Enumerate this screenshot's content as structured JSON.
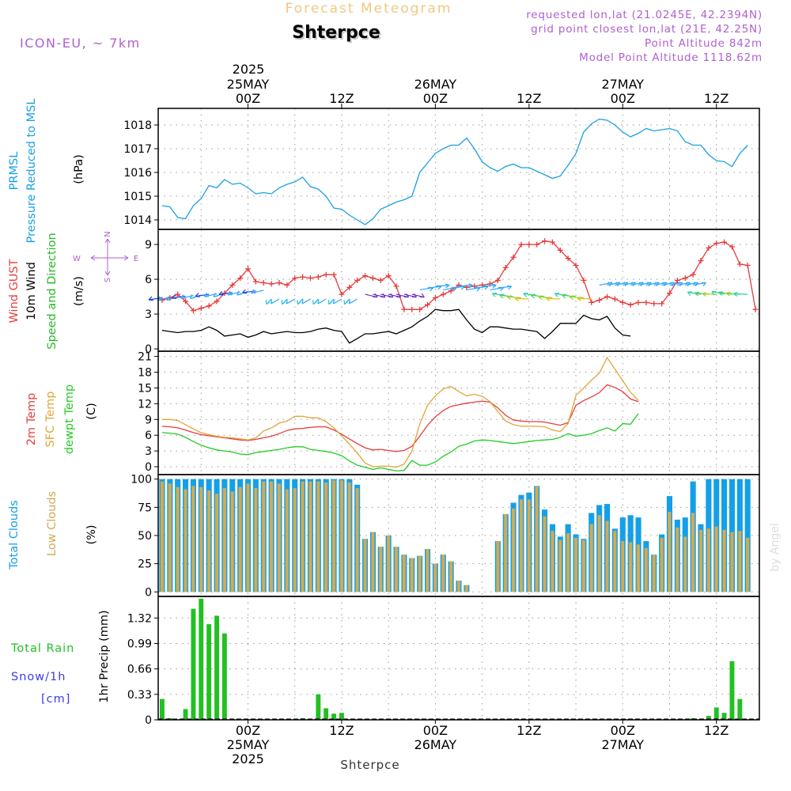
{
  "header": {
    "supertitle": "Forecast Meteogram",
    "location": "Shterpce",
    "model": "ICON-EU, ~ 7km",
    "requested": "requested lon,lat (21.0245E, 42.2394N)",
    "grid_point": "grid point closest lon,lat (21E, 42.25N)",
    "point_alt": "Point Altitude 842m",
    "model_alt": "Model Point Altitude 1118.62m",
    "credit": "by Angel",
    "footer": "Shterpce"
  },
  "colors": {
    "pressure": "#1aa0e6",
    "gust": "#e63c3c",
    "wind10": "#000000",
    "dir": "#22b822",
    "t2m": "#e63c3c",
    "sfc": "#e2a43a",
    "dew": "#22cc22",
    "total_clouds": "#14a0e8",
    "low_clouds": "#d4aa50",
    "rain": "#22c022",
    "snow": "#3c3ce6",
    "compass": "#b060d0",
    "meta": "#b060d0",
    "supertitle": "#f0c880",
    "grid": "#999999"
  },
  "time_axis": {
    "top_year": "2025",
    "top_labels": [
      {
        "hour": 0,
        "lines": [
          "25MAY",
          "00Z"
        ]
      },
      {
        "hour": 12,
        "lines": [
          "12Z"
        ]
      },
      {
        "hour": 24,
        "lines": [
          "26MAY",
          "00Z"
        ]
      },
      {
        "hour": 36,
        "lines": [
          "12Z"
        ]
      },
      {
        "hour": 48,
        "lines": [
          "27MAY",
          "00Z"
        ]
      },
      {
        "hour": 60,
        "lines": [
          "12Z"
        ]
      }
    ],
    "bottom_labels": [
      {
        "hour": 0,
        "lines": [
          "00Z",
          "25MAY",
          "2025"
        ]
      },
      {
        "hour": 12,
        "lines": [
          "12Z"
        ]
      },
      {
        "hour": 24,
        "lines": [
          "00Z",
          "26MAY"
        ]
      },
      {
        "hour": 36,
        "lines": [
          "12Z"
        ]
      },
      {
        "hour": 48,
        "lines": [
          "00Z",
          "27MAY"
        ]
      },
      {
        "hour": 60,
        "lines": [
          "12Z"
        ]
      }
    ],
    "hour_range": [
      -11.5,
      65.5
    ]
  },
  "chart_data": [
    {
      "type": "line",
      "id": "pressure",
      "title": "PRMSL Pressure Reduced to MSL",
      "label_lines": [
        "PRMSL",
        "Pressure Reduced to MSL"
      ],
      "ylabel": "(hPa)",
      "ylim": [
        1013.6,
        1018.7
      ],
      "yticks": [
        1014,
        1015,
        1016,
        1017,
        1018
      ],
      "x_start_hour": -11,
      "series": [
        {
          "name": "PRMSL",
          "color": "#1aa0e6",
          "values": [
            1014.6,
            1014.55,
            1014.1,
            1014.05,
            1014.6,
            1014.9,
            1015.45,
            1015.35,
            1015.7,
            1015.5,
            1015.55,
            1015.35,
            1015.1,
            1015.15,
            1015.1,
            1015.35,
            1015.5,
            1015.6,
            1015.8,
            1015.4,
            1015.3,
            1015.0,
            1014.5,
            1014.45,
            1014.2,
            1014.0,
            1013.8,
            1014.05,
            1014.45,
            1014.6,
            1014.75,
            1014.85,
            1015.0,
            1016.0,
            1016.4,
            1016.8,
            1017.0,
            1017.15,
            1017.15,
            1017.45,
            1017.0,
            1016.45,
            1016.2,
            1016.05,
            1016.25,
            1016.35,
            1016.2,
            1016.2,
            1016.05,
            1015.9,
            1015.75,
            1015.85,
            1016.3,
            1016.8,
            1017.7,
            1018.05,
            1018.25,
            1018.2,
            1018.0,
            1017.7,
            1017.5,
            1017.65,
            1017.85,
            1017.75,
            1017.8,
            1017.85,
            1017.75,
            1017.3,
            1017.15,
            1017.15,
            1016.75,
            1016.5,
            1016.45,
            1016.25,
            1016.8,
            1017.15
          ]
        }
      ]
    },
    {
      "type": "line",
      "id": "wind",
      "title": "Wind GUST / 10m Wind Speed and Direction",
      "label_gust": "Wind GUST",
      "label_wind": "10m Wind",
      "label_dir": "Speed and Direction",
      "ylabel": "(m/s)",
      "compass": {
        "n": "N",
        "s": "S",
        "w": "W",
        "e": "E"
      },
      "ylim": [
        -0.2,
        10.3
      ],
      "yticks": [
        0,
        3,
        6,
        9
      ],
      "x_start_hour": -11,
      "series": [
        {
          "name": "Wind GUST",
          "color": "#e63c3c",
          "markers": "+",
          "values": [
            4.2,
            4.4,
            4.7,
            4.1,
            3.3,
            3.5,
            3.7,
            4.1,
            4.8,
            5.5,
            6.1,
            6.9,
            5.8,
            5.7,
            5.6,
            5.7,
            5.5,
            6.1,
            6.2,
            6.1,
            6.2,
            6.4,
            6.4,
            4.7,
            5.3,
            5.9,
            6.3,
            6.1,
            5.9,
            6.3,
            5.4,
            3.4,
            3.4,
            3.4,
            3.8,
            4.4,
            4.7,
            5.0,
            5.5,
            5.3,
            5.4,
            5.5,
            5.6,
            5.9,
            7.0,
            7.9,
            9.0,
            9.0,
            9.0,
            9.3,
            9.2,
            8.5,
            7.8,
            7.2,
            5.9,
            4.0,
            4.2,
            4.5,
            4.3,
            4.0,
            3.8,
            4.0,
            4.0,
            3.9,
            3.9,
            4.8,
            5.9,
            6.1,
            6.4,
            7.6,
            8.7,
            9.1,
            9.2,
            8.8,
            7.3,
            7.2,
            3.4
          ]
        },
        {
          "name": "10m Wind",
          "color": "#000000",
          "values": [
            1.6,
            1.5,
            1.4,
            1.5,
            1.5,
            1.6,
            1.9,
            1.6,
            1.1,
            1.2,
            1.3,
            1.0,
            1.2,
            1.5,
            1.3,
            1.4,
            1.5,
            1.4,
            1.4,
            1.5,
            1.7,
            1.8,
            1.6,
            1.5,
            0.5,
            0.9,
            1.3,
            1.3,
            1.4,
            1.5,
            1.3,
            1.6,
            1.9,
            2.4,
            2.8,
            3.4,
            3.3,
            3.3,
            3.4,
            2.5,
            1.7,
            1.4,
            1.9,
            1.9,
            1.8,
            1.7,
            1.7,
            1.6,
            1.5,
            0.9,
            1.5,
            2.2,
            2.2,
            2.2,
            2.9,
            2.6,
            2.5,
            2.8,
            1.8,
            1.2,
            1.1
          ]
        }
      ]
    },
    {
      "type": "line",
      "id": "temperature",
      "title": "2m Temp / SFC Temp / dewpt Temp",
      "label_lines": [
        "2m Temp",
        "SFC Temp",
        "dewpt Temp"
      ],
      "ylabel": "(C)",
      "ylim": [
        -1.5,
        22.0
      ],
      "yticks": [
        0,
        3,
        6,
        9,
        12,
        15,
        18,
        21
      ],
      "x_start_hour": -11,
      "series": [
        {
          "name": "2m Temp",
          "color": "#e63c3c",
          "values": [
            7.7,
            7.6,
            7.4,
            7.0,
            6.5,
            6.1,
            5.9,
            5.7,
            5.5,
            5.3,
            5.1,
            5.0,
            5.2,
            5.5,
            5.8,
            6.3,
            6.9,
            7.2,
            7.3,
            7.5,
            7.6,
            7.6,
            7.0,
            6.2,
            5.3,
            4.4,
            3.6,
            3.2,
            3.3,
            3.1,
            2.9,
            3.1,
            3.9,
            5.8,
            7.9,
            9.5,
            10.7,
            11.5,
            11.8,
            12.1,
            12.3,
            12.5,
            12.3,
            11.2,
            9.8,
            8.9,
            8.7,
            8.6,
            8.6,
            8.5,
            8.2,
            7.9,
            8.4,
            11.7,
            12.6,
            13.3,
            14.1,
            15.6,
            15.1,
            14.3,
            12.9,
            12.4
          ]
        },
        {
          "name": "SFC Temp",
          "color": "#e2a43a",
          "values": [
            9.0,
            9.0,
            8.8,
            8.0,
            7.2,
            6.5,
            6.1,
            5.8,
            5.6,
            5.5,
            5.3,
            5.1,
            5.5,
            6.8,
            7.4,
            8.3,
            8.7,
            9.6,
            9.6,
            9.3,
            9.3,
            8.6,
            7.4,
            5.9,
            4.3,
            2.6,
            0.7,
            0.0,
            0.1,
            0.1,
            -0.1,
            0.5,
            3.0,
            8.1,
            11.7,
            13.5,
            14.8,
            15.3,
            14.3,
            13.5,
            13.8,
            13.4,
            12.4,
            10.5,
            8.7,
            8.0,
            7.7,
            7.7,
            7.7,
            7.6,
            7.0,
            6.7,
            8.2,
            13.6,
            15.0,
            16.5,
            17.8,
            20.8,
            18.6,
            16.4,
            14.2,
            12.6
          ]
        },
        {
          "name": "dewpt Temp",
          "color": "#22cc22",
          "values": [
            6.5,
            6.4,
            6.2,
            5.6,
            4.8,
            4.1,
            3.6,
            3.2,
            3.0,
            2.8,
            2.4,
            2.3,
            2.7,
            2.9,
            3.1,
            3.3,
            3.6,
            3.8,
            3.8,
            3.3,
            3.1,
            2.9,
            2.6,
            2.1,
            1.1,
            0.3,
            -0.1,
            -0.5,
            -0.2,
            -0.5,
            -0.8,
            -0.7,
            1.2,
            0.3,
            0.3,
            0.9,
            2.0,
            2.8,
            3.9,
            4.3,
            4.9,
            5.1,
            5.0,
            4.8,
            4.6,
            4.4,
            4.6,
            4.8,
            5.0,
            5.1,
            5.2,
            5.6,
            6.3,
            5.8,
            6.0,
            6.3,
            6.9,
            7.4,
            6.8,
            8.2,
            8.1,
            10.1
          ]
        }
      ]
    },
    {
      "type": "bar",
      "id": "clouds",
      "title": "Total Clouds / Low Clouds",
      "label_total": "Total Clouds",
      "label_low": "Low Clouds",
      "ylabel": "(%)",
      "ylim": [
        -4,
        104
      ],
      "yticks": [
        0,
        25,
        50,
        75,
        100
      ],
      "x_start_hour": -11,
      "series": [
        {
          "name": "Total Clouds",
          "color": "#14a0e8",
          "values": [
            100,
            100,
            100,
            100,
            100,
            100,
            100,
            100,
            100,
            100,
            100,
            100,
            100,
            100,
            100,
            100,
            100,
            100,
            100,
            100,
            100,
            100,
            100,
            100,
            100,
            95,
            47,
            53,
            40,
            50,
            40,
            33,
            30,
            32,
            38,
            25,
            33,
            27,
            10,
            6,
            0,
            0,
            0,
            45,
            69,
            79,
            86,
            88,
            94,
            73,
            60,
            49,
            60,
            51,
            47,
            70,
            77,
            78,
            56,
            66,
            68,
            66,
            45,
            33,
            51,
            85,
            64,
            66,
            98,
            60,
            100,
            100,
            100,
            100,
            100,
            100
          ]
        },
        {
          "name": "Low Clouds",
          "color": "#d4aa50",
          "values": [
            98,
            96,
            93,
            91,
            94,
            93,
            90,
            87,
            92,
            89,
            93,
            96,
            92,
            98,
            98,
            96,
            91,
            92,
            98,
            98,
            98,
            97,
            99,
            99,
            97,
            92,
            47,
            53,
            40,
            50,
            40,
            33,
            30,
            32,
            38,
            25,
            33,
            27,
            10,
            6,
            0,
            0,
            0,
            45,
            69,
            74,
            82,
            82,
            94,
            67,
            54,
            46,
            52,
            48,
            46,
            60,
            68,
            63,
            54,
            45,
            44,
            42,
            39,
            33,
            48,
            71,
            57,
            49,
            70,
            55,
            56,
            58,
            55,
            53,
            54,
            48
          ]
        }
      ]
    },
    {
      "type": "bar",
      "id": "precip",
      "title": "Total Rain / Snow/1h [cm]",
      "label_rain": "Total  Rain",
      "label_snow": "Snow/1h",
      "label_snow_unit": "[cm]",
      "ylabel": "1hr Precip (mm)",
      "ylim": [
        0,
        1.6
      ],
      "yticks": [
        0,
        0.33,
        0.66,
        0.99,
        1.32
      ],
      "ytick_labels": [
        "0",
        "0.33",
        "0.66",
        "0.99",
        "1.32"
      ],
      "x_start_hour": -11,
      "series": [
        {
          "name": "Total Rain",
          "color": "#22c022",
          "values": [
            0.27,
            0.02,
            0,
            0.14,
            1.44,
            1.57,
            1.24,
            1.35,
            1.12,
            0,
            0,
            0,
            0,
            0,
            0,
            0,
            0,
            0,
            0.02,
            0,
            0.33,
            0.15,
            0.08,
            0.09,
            0,
            0,
            0,
            0,
            0,
            0,
            0,
            0,
            0,
            0,
            0,
            0,
            0,
            0,
            0,
            0,
            0,
            0,
            0,
            0,
            0,
            0,
            0,
            0,
            0,
            0,
            0,
            0,
            0,
            0,
            0,
            0,
            0,
            0,
            0,
            0,
            0,
            0,
            0,
            0,
            0,
            0,
            0,
            0,
            0.02,
            0,
            0.05,
            0.16,
            0.09,
            0.76,
            0.27
          ]
        }
      ]
    }
  ]
}
